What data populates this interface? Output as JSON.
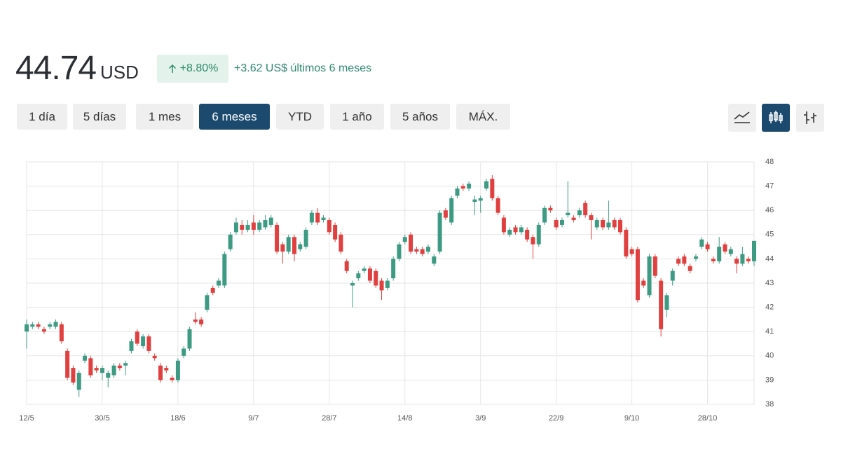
{
  "header": {
    "price": "44.74",
    "currency": "USD",
    "change_percent": "+8.80%",
    "change_text": "+3.62 US$ últimos 6 meses"
  },
  "range_buttons": [
    "1 día",
    "5 días",
    "1 mes",
    "6 meses",
    "YTD",
    "1 año",
    "5 años",
    "MÁX."
  ],
  "selected_range": 3,
  "chart_data": {
    "type": "candlestick",
    "categories": [
      "12/5",
      null,
      null,
      null,
      null,
      null,
      null,
      null,
      null,
      null,
      null,
      null,
      null,
      "30/5",
      null,
      null,
      null,
      null,
      null,
      null,
      null,
      null,
      null,
      null,
      null,
      null,
      "18/6",
      null,
      null,
      null,
      null,
      null,
      null,
      null,
      null,
      null,
      null,
      null,
      null,
      "9/7",
      null,
      null,
      null,
      null,
      null,
      null,
      null,
      null,
      null,
      null,
      null,
      null,
      "28/7",
      null,
      null,
      null,
      null,
      null,
      null,
      null,
      null,
      null,
      null,
      null,
      null,
      "14/8",
      null,
      null,
      null,
      null,
      null,
      null,
      null,
      null,
      null,
      null,
      null,
      null,
      "3/9",
      null,
      null,
      null,
      null,
      null,
      null,
      null,
      null,
      null,
      null,
      null,
      null,
      "22/9",
      null,
      null,
      null,
      null,
      null,
      null,
      null,
      null,
      null,
      null,
      null,
      null,
      "9/10",
      null,
      null,
      null,
      null,
      null,
      null,
      null,
      null,
      null,
      null,
      null,
      null,
      "28/10",
      null,
      null,
      null,
      null,
      null,
      null,
      null,
      null
    ],
    "open": [
      41.0,
      41.2,
      41.3,
      41.1,
      41.2,
      41.2,
      41.3,
      40.2,
      39.5,
      38.6,
      39.8,
      39.9,
      39.5,
      39.3,
      39.1,
      39.2,
      39.6,
      39.6,
      40.2,
      41.0,
      40.4,
      40.8,
      40.0,
      39.6,
      39.5,
      39.1,
      39.0,
      40.0,
      40.3,
      41.5,
      41.5,
      41.9,
      42.8,
      42.9,
      42.9,
      44.4,
      45.1,
      45.4,
      45.2,
      45.5,
      45.2,
      45.3,
      45.4,
      45.4,
      44.6,
      44.3,
      44.9,
      44.4,
      44.5,
      45.5,
      45.9,
      45.6,
      45.6,
      45.4,
      45.0,
      43.9,
      42.9,
      43.2,
      43.5,
      43.6,
      43.5,
      43.1,
      42.8,
      43.2,
      44.0,
      44.7,
      45.0,
      44.4,
      44.4,
      44.3,
      43.8,
      44.3,
      46.0,
      45.5,
      46.6,
      47.0,
      46.9,
      46.35,
      46.4,
      46.9,
      47.3,
      46.5,
      45.7,
      45.0,
      45.3,
      45.1,
      45.2,
      44.9,
      44.6,
      45.5,
      46.1,
      45.6,
      45.4,
      45.8,
      45.7,
      45.8,
      46.3,
      45.8,
      45.3,
      45.6,
      45.3,
      45.6,
      45.6,
      45.2,
      44.4,
      44.4,
      43.1,
      42.5,
      44.1,
      43.1,
      41.9,
      43.1,
      44.0,
      44.1,
      43.7,
      44.0,
      44.5,
      44.6,
      44.0,
      43.9,
      44.6,
      44.2,
      44.0,
      43.8,
      44.0,
      43.9
    ],
    "high": [
      41.5,
      41.4,
      41.4,
      41.2,
      41.4,
      41.5,
      41.4,
      40.3,
      39.6,
      39.4,
      40.1,
      40.0,
      39.6,
      39.6,
      39.4,
      39.7,
      39.7,
      39.8,
      40.7,
      41.1,
      40.9,
      40.9,
      40.1,
      39.7,
      39.6,
      39.2,
      39.9,
      40.4,
      41.2,
      41.8,
      41.6,
      42.6,
      42.9,
      43.2,
      44.3,
      45.1,
      45.7,
      45.6,
      45.6,
      45.8,
      45.6,
      45.8,
      45.8,
      45.5,
      44.7,
      45.0,
      45.0,
      44.7,
      45.3,
      46.0,
      46.1,
      45.8,
      45.7,
      45.5,
      45.1,
      44.0,
      43.1,
      43.5,
      43.7,
      43.7,
      43.6,
      43.2,
      43.2,
      44.1,
      44.7,
      45.0,
      45.1,
      44.5,
      44.5,
      44.6,
      44.2,
      46.0,
      46.1,
      46.6,
      47.0,
      47.1,
      47.2,
      46.6,
      46.6,
      47.3,
      47.45,
      46.6,
      45.8,
      45.3,
      45.4,
      45.4,
      45.3,
      45.0,
      45.5,
      46.2,
      46.2,
      45.7,
      45.7,
      47.2,
      45.8,
      46.1,
      46.4,
      45.9,
      45.7,
      45.7,
      46.4,
      45.7,
      45.7,
      45.3,
      44.5,
      44.5,
      43.2,
      44.2,
      44.2,
      43.2,
      42.6,
      43.6,
      44.1,
      44.2,
      43.8,
      44.2,
      44.9,
      44.7,
      44.1,
      44.9,
      44.7,
      44.5,
      44.1,
      44.5,
      44.1,
      44.74
    ],
    "low": [
      40.3,
      41.1,
      41.1,
      40.9,
      41.1,
      41.1,
      40.5,
      39.0,
      38.8,
      38.3,
      39.7,
      39.1,
      39.3,
      39.0,
      38.7,
      39.1,
      39.4,
      39.2,
      40.1,
      40.4,
      40.3,
      40.1,
      39.8,
      38.9,
      39.3,
      38.9,
      38.9,
      39.9,
      40.2,
      41.3,
      41.2,
      41.8,
      42.5,
      42.8,
      42.8,
      44.3,
      45.0,
      45.0,
      45.1,
      45.0,
      45.1,
      45.2,
      45.3,
      44.2,
      43.8,
      44.2,
      43.9,
      44.3,
      44.4,
      45.4,
      45.4,
      45.5,
      45.0,
      44.7,
      44.2,
      43.4,
      42.0,
      43.1,
      43.4,
      43.0,
      42.8,
      42.3,
      42.7,
      43.1,
      43.9,
      44.6,
      44.2,
      44.2,
      44.1,
      44.2,
      43.7,
      44.2,
      45.6,
      45.4,
      46.5,
      46.8,
      46.8,
      45.8,
      45.9,
      46.8,
      46.4,
      45.8,
      45.0,
      44.9,
      45.0,
      45.0,
      44.7,
      44.0,
      44.5,
      45.4,
      45.9,
      45.2,
      45.3,
      45.7,
      45.5,
      45.7,
      45.7,
      44.8,
      45.2,
      45.2,
      45.2,
      45.2,
      45.0,
      44.0,
      44.1,
      42.2,
      42.8,
      42.4,
      43.2,
      40.8,
      41.6,
      42.9,
      43.7,
      43.7,
      43.4,
      43.9,
      44.4,
      44.3,
      43.8,
      43.8,
      44.2,
      44.1,
      43.4,
      43.7,
      43.8,
      43.7
    ],
    "close": [
      41.3,
      41.3,
      41.2,
      41.0,
      41.3,
      41.4,
      40.6,
      39.1,
      38.9,
      39.3,
      40.0,
      39.2,
      39.4,
      39.5,
      39.3,
      39.6,
      39.5,
      39.7,
      40.6,
      40.5,
      40.8,
      40.2,
      39.9,
      39.0,
      39.4,
      39.0,
      39.8,
      40.3,
      41.1,
      41.4,
      41.3,
      42.5,
      42.6,
      43.1,
      44.2,
      45.0,
      45.5,
      45.2,
      45.4,
      45.2,
      45.5,
      45.6,
      45.7,
      44.3,
      44.3,
      44.9,
      44.2,
      44.6,
      45.2,
      45.9,
      45.5,
      45.7,
      45.1,
      44.8,
      44.3,
      43.5,
      43.0,
      43.4,
      43.6,
      43.1,
      42.9,
      42.7,
      43.1,
      44.0,
      44.6,
      44.9,
      44.3,
      44.3,
      44.2,
      44.5,
      44.1,
      45.9,
      45.7,
      46.5,
      46.9,
      46.9,
      47.1,
      46.45,
      46.5,
      47.2,
      46.5,
      45.9,
      45.1,
      45.2,
      45.1,
      45.3,
      44.8,
      44.6,
      45.4,
      46.1,
      46.0,
      45.3,
      45.6,
      45.9,
      45.6,
      46.0,
      45.8,
      45.6,
      45.6,
      45.3,
      45.5,
      45.3,
      45.1,
      44.1,
      44.2,
      42.3,
      42.9,
      44.1,
      43.3,
      41.1,
      42.5,
      43.5,
      43.8,
      43.8,
      43.5,
      44.1,
      44.8,
      44.4,
      43.9,
      44.5,
      44.3,
      44.4,
      43.8,
      44.2,
      43.9,
      44.74
    ],
    "ylim": [
      38,
      48
    ],
    "yticks": [
      38,
      39,
      40,
      41,
      42,
      43,
      44,
      45,
      46,
      47,
      48
    ],
    "grid": true,
    "up_color": "#3d9a83",
    "down_color": "#e0403f"
  }
}
